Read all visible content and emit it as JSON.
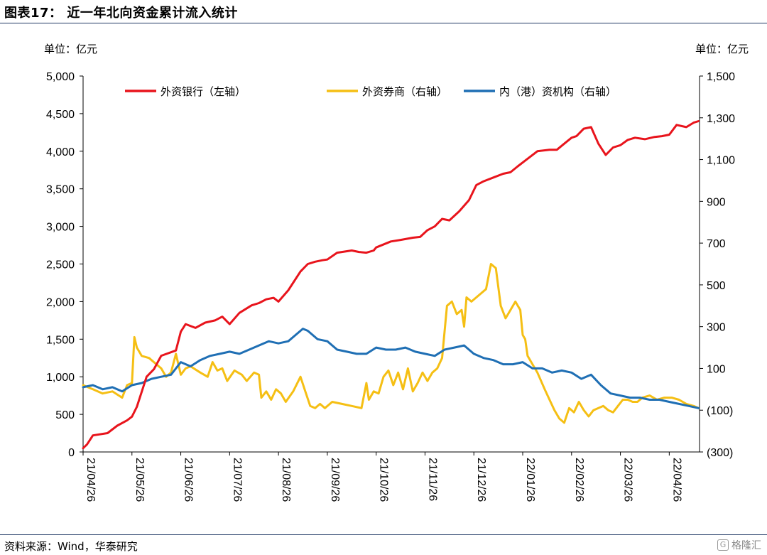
{
  "title": "图表17： 近一年北向资金累计流入统计",
  "unit_left": "单位：亿元",
  "unit_right": "单位：亿元",
  "source": "资料来源：Wind，华泰研究",
  "watermark": "格隆汇",
  "colors": {
    "bank": "#e8141c",
    "broker": "#f5bf14",
    "inst": "#1f6fb4"
  },
  "chart_data": {
    "type": "line",
    "x_ticks": [
      "21/04/26",
      "21/05/26",
      "21/06/26",
      "21/07/26",
      "21/08/26",
      "21/09/26",
      "21/10/26",
      "21/11/26",
      "21/12/26",
      "22/01/26",
      "22/02/26",
      "22/03/26",
      "22/04/26"
    ],
    "y_left": {
      "min": 0,
      "max": 5000,
      "ticks": [
        "0",
        "500",
        "1,000",
        "1,500",
        "2,000",
        "2,500",
        "3,000",
        "3,500",
        "4,000",
        "4,500",
        "5,000"
      ]
    },
    "y_right": {
      "min": -300,
      "max": 1500,
      "ticks": [
        "(300)",
        "(100)",
        "100",
        "300",
        "500",
        "700",
        "900",
        "1,100",
        "1,300",
        "1,500"
      ]
    },
    "series": [
      {
        "name": "外资银行（左轴）",
        "axis": "left",
        "x": [
          0,
          0.08,
          0.2,
          0.5,
          0.7,
          0.9,
          1.0,
          1.1,
          1.3,
          1.45,
          1.6,
          1.9,
          2.0,
          2.1,
          2.3,
          2.5,
          2.7,
          2.85,
          3.0,
          3.2,
          3.45,
          3.6,
          3.75,
          3.9,
          4.0,
          4.2,
          4.45,
          4.6,
          4.75,
          4.9,
          5.0,
          5.2,
          5.5,
          5.65,
          5.8,
          5.95,
          6.0,
          6.3,
          6.5,
          6.75,
          6.9,
          7.05,
          7.2,
          7.35,
          7.5,
          7.7,
          7.9,
          8.05,
          8.2,
          8.4,
          8.6,
          8.75,
          8.9,
          9.0,
          9.3,
          9.55,
          9.7,
          9.85,
          10.0,
          10.1,
          10.25,
          10.4,
          10.55,
          10.7,
          10.85,
          11.0,
          11.15,
          11.3,
          11.5,
          11.7,
          11.85,
          12.0,
          12.15,
          12.35,
          12.5,
          12.6
        ],
        "y": [
          50,
          100,
          220,
          250,
          350,
          420,
          470,
          600,
          1000,
          1100,
          1280,
          1350,
          1600,
          1700,
          1650,
          1720,
          1750,
          1800,
          1700,
          1850,
          1950,
          1980,
          2030,
          2050,
          2000,
          2150,
          2400,
          2500,
          2530,
          2550,
          2560,
          2650,
          2680,
          2660,
          2650,
          2680,
          2720,
          2800,
          2820,
          2850,
          2860,
          2950,
          3000,
          3100,
          3080,
          3200,
          3350,
          3550,
          3600,
          3650,
          3700,
          3720,
          3800,
          3850,
          4000,
          4020,
          4020,
          4100,
          4180,
          4200,
          4300,
          4320,
          4100,
          3950,
          4050,
          4080,
          4150,
          4180,
          4160,
          4190,
          4200,
          4220,
          4350,
          4320,
          4380,
          4400
        ]
      },
      {
        "name": "外资券商（右轴）",
        "axis": "right",
        "x": [
          0,
          0.2,
          0.4,
          0.6,
          0.8,
          0.9,
          1.0,
          1.05,
          1.1,
          1.2,
          1.35,
          1.5,
          1.6,
          1.7,
          1.8,
          1.9,
          2.0,
          2.1,
          2.2,
          2.4,
          2.55,
          2.65,
          2.75,
          2.85,
          2.95,
          3.1,
          3.25,
          3.35,
          3.5,
          3.6,
          3.65,
          3.75,
          3.85,
          3.95,
          4.05,
          4.15,
          4.3,
          4.45,
          4.55,
          4.65,
          4.75,
          4.85,
          4.95,
          5.1,
          5.3,
          5.5,
          5.7,
          5.8,
          5.85,
          5.95,
          6.05,
          6.15,
          6.25,
          6.35,
          6.45,
          6.55,
          6.65,
          6.75,
          6.85,
          6.95,
          7.05,
          7.15,
          7.25,
          7.35,
          7.45,
          7.55,
          7.65,
          7.75,
          7.8,
          7.85,
          7.95,
          8.05,
          8.15,
          8.25,
          8.35,
          8.45,
          8.55,
          8.65,
          8.75,
          8.85,
          8.9,
          8.95,
          9.0,
          9.05,
          9.1,
          9.2,
          9.3,
          9.45,
          9.55,
          9.65,
          9.75,
          9.85,
          9.95,
          10.05,
          10.15,
          10.25,
          10.35,
          10.45,
          10.55,
          10.65,
          10.75,
          10.85,
          10.95,
          11.05,
          11.15,
          11.25,
          11.35,
          11.45,
          11.6,
          11.75,
          11.9,
          12.05,
          12.2,
          12.35,
          12.5,
          12.6
        ],
        "y": [
          20,
          0,
          -20,
          -10,
          -40,
          20,
          30,
          250,
          200,
          160,
          150,
          120,
          100,
          60,
          80,
          170,
          70,
          100,
          110,
          80,
          60,
          130,
          90,
          100,
          40,
          90,
          70,
          40,
          80,
          70,
          -40,
          -10,
          -50,
          0,
          -20,
          -60,
          -10,
          60,
          -10,
          -80,
          -90,
          -70,
          -90,
          -60,
          -70,
          -80,
          -90,
          30,
          -50,
          -10,
          -20,
          60,
          90,
          20,
          80,
          0,
          100,
          -10,
          30,
          80,
          40,
          80,
          100,
          150,
          400,
          420,
          360,
          380,
          300,
          440,
          420,
          440,
          460,
          480,
          600,
          580,
          400,
          340,
          380,
          420,
          400,
          380,
          260,
          240,
          160,
          120,
          80,
          0,
          -50,
          -100,
          -140,
          -160,
          -90,
          -110,
          -60,
          -100,
          -130,
          -100,
          -90,
          -80,
          -100,
          -110,
          -80,
          -50,
          -50,
          -60,
          -60,
          -40,
          -30,
          -50,
          -40,
          -40,
          -50,
          -70,
          -80,
          -90
        ]
      },
      {
        "name": "内（港）资机构（右轴）",
        "axis": "right",
        "x": [
          0,
          0.2,
          0.4,
          0.6,
          0.8,
          1.0,
          1.2,
          1.4,
          1.6,
          1.8,
          2.0,
          2.2,
          2.4,
          2.6,
          2.8,
          3.0,
          3.2,
          3.4,
          3.6,
          3.8,
          4.0,
          4.2,
          4.4,
          4.5,
          4.6,
          4.8,
          5.0,
          5.2,
          5.4,
          5.6,
          5.8,
          6.0,
          6.2,
          6.4,
          6.6,
          6.8,
          7.0,
          7.2,
          7.4,
          7.6,
          7.8,
          8.0,
          8.2,
          8.4,
          8.6,
          8.8,
          9.0,
          9.2,
          9.4,
          9.6,
          9.8,
          10.0,
          10.2,
          10.4,
          10.6,
          10.8,
          11.0,
          11.2,
          11.4,
          11.6,
          11.8,
          12.0,
          12.2,
          12.4,
          12.6
        ],
        "y": [
          10,
          20,
          0,
          10,
          -10,
          20,
          30,
          50,
          60,
          70,
          130,
          110,
          140,
          160,
          170,
          180,
          170,
          190,
          210,
          230,
          220,
          230,
          270,
          290,
          280,
          240,
          230,
          190,
          180,
          170,
          170,
          200,
          190,
          190,
          200,
          180,
          170,
          160,
          190,
          200,
          210,
          170,
          150,
          140,
          120,
          120,
          130,
          100,
          100,
          80,
          90,
          80,
          50,
          70,
          20,
          -20,
          -30,
          -40,
          -40,
          -50,
          -50,
          -60,
          -70,
          -80,
          -90
        ]
      }
    ]
  }
}
